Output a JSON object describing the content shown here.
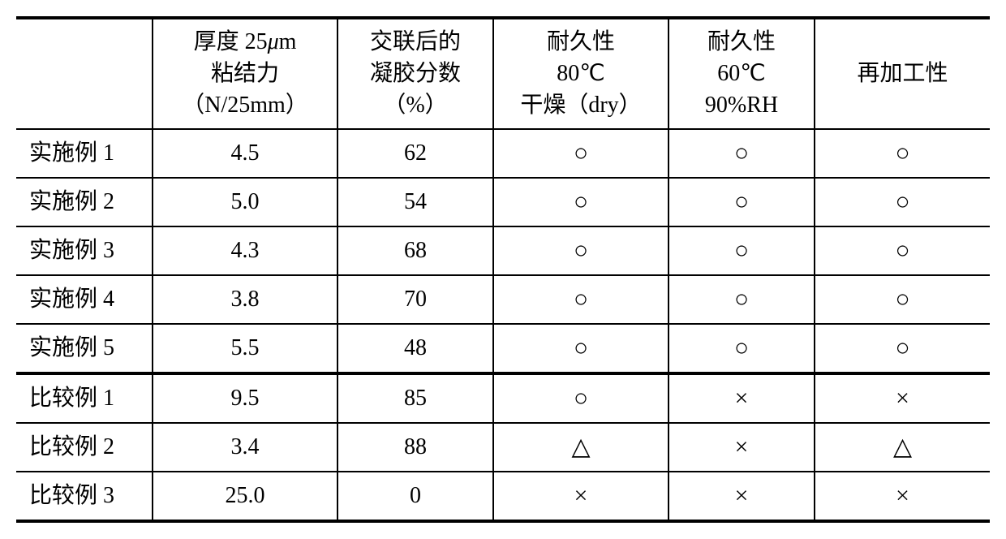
{
  "table": {
    "headers": {
      "col0": "",
      "col1_line1": "厚度 25",
      "col1_unit": "μ",
      "col1_line1_end": "m",
      "col1_line2": "粘结力",
      "col1_line3": "（N/25mm）",
      "col2_line1": "交联后的",
      "col2_line2": "凝胶分数",
      "col2_line3": "（%）",
      "col3_line1": "耐久性",
      "col3_line2": "80℃",
      "col3_line3": "干燥（dry）",
      "col4_line1": "耐久性",
      "col4_line2": "60℃",
      "col4_line3": "90%RH",
      "col5": "再加工性"
    },
    "rows": [
      {
        "label": "实施例 1",
        "c1": "4.5",
        "c2": "62",
        "c3": "○",
        "c4": "○",
        "c5": "○"
      },
      {
        "label": "实施例 2",
        "c1": "5.0",
        "c2": "54",
        "c3": "○",
        "c4": "○",
        "c5": "○"
      },
      {
        "label": "实施例 3",
        "c1": "4.3",
        "c2": "68",
        "c3": "○",
        "c4": "○",
        "c5": "○"
      },
      {
        "label": "实施例 4",
        "c1": "3.8",
        "c2": "70",
        "c3": "○",
        "c4": "○",
        "c5": "○"
      },
      {
        "label": "实施例 5",
        "c1": "5.5",
        "c2": "48",
        "c3": "○",
        "c4": "○",
        "c5": "○"
      },
      {
        "label": "比较例 1",
        "c1": "9.5",
        "c2": "85",
        "c3": "○",
        "c4": "×",
        "c5": "×"
      },
      {
        "label": "比较例 2",
        "c1": "3.4",
        "c2": "88",
        "c3": "△",
        "c4": "×",
        "c5": "△"
      },
      {
        "label": "比较例 3",
        "c1": "25.0",
        "c2": "0",
        "c3": "×",
        "c4": "×",
        "c5": "×"
      }
    ],
    "thick_separator_before_row_index": 5,
    "colors": {
      "border": "#000000",
      "background": "#ffffff",
      "text": "#000000"
    },
    "fontsize": 28,
    "symbol_fontsize": 30
  }
}
